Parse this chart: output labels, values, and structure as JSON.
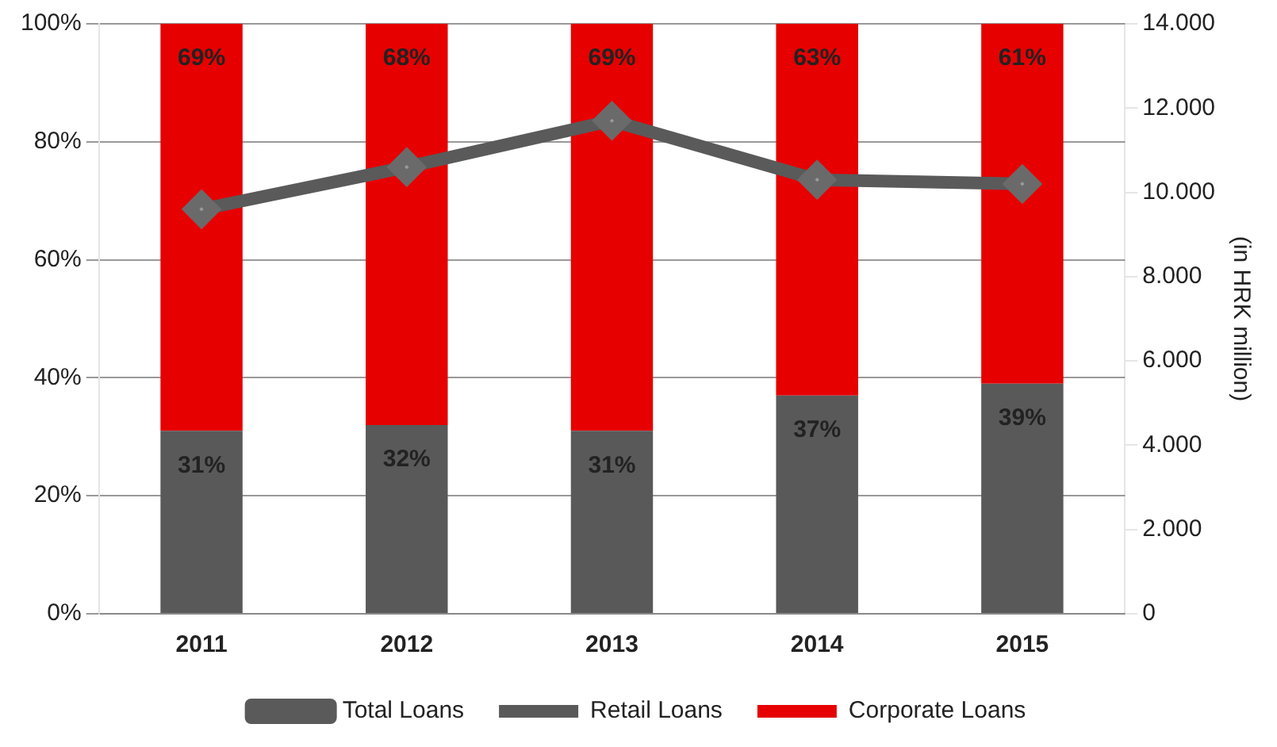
{
  "chart_data": {
    "type": "bar",
    "stacked": true,
    "categories": [
      "2011",
      "2012",
      "2013",
      "2014",
      "2015"
    ],
    "series": [
      {
        "name": "Retail Loans",
        "color": "#595959",
        "values": [
          31,
          32,
          31,
          37,
          39
        ],
        "value_labels": [
          "31%",
          "32%",
          "31%",
          "37%",
          "39%"
        ]
      },
      {
        "name": "Corporate Loans",
        "color": "#e60000",
        "values": [
          69,
          68,
          69,
          63,
          61
        ],
        "value_labels": [
          "69%",
          "68%",
          "69%",
          "63%",
          "61%"
        ]
      },
      {
        "name": "Total Loans",
        "type": "line",
        "axis": "y2",
        "color": "#5a5a5a",
        "marker": "diamond",
        "values": [
          9600,
          10600,
          11700,
          10300,
          10200
        ]
      }
    ],
    "ylim": [
      0,
      100
    ],
    "yticks": [
      {
        "value": 0,
        "label": "0%"
      },
      {
        "value": 20,
        "label": "20%"
      },
      {
        "value": 40,
        "label": "40%"
      },
      {
        "value": 60,
        "label": "60%"
      },
      {
        "value": 80,
        "label": "80%"
      },
      {
        "value": 100,
        "label": "100%"
      }
    ],
    "y2lim": [
      0,
      14000
    ],
    "y2ticks": [
      0,
      {
        "value": 2000,
        "label": "2.000"
      },
      {
        "value": 4000,
        "label": "4.000"
      },
      {
        "value": 6000,
        "label": "6.000"
      },
      {
        "value": 8000,
        "label": "8.000"
      },
      {
        "value": 10000,
        "label": "10.000"
      },
      {
        "value": 12000,
        "label": "12.000"
      },
      {
        "value": 14000,
        "label": "14.000"
      }
    ],
    "y2label": "(in HRK million)",
    "grid": "y",
    "legend": "bottom"
  }
}
